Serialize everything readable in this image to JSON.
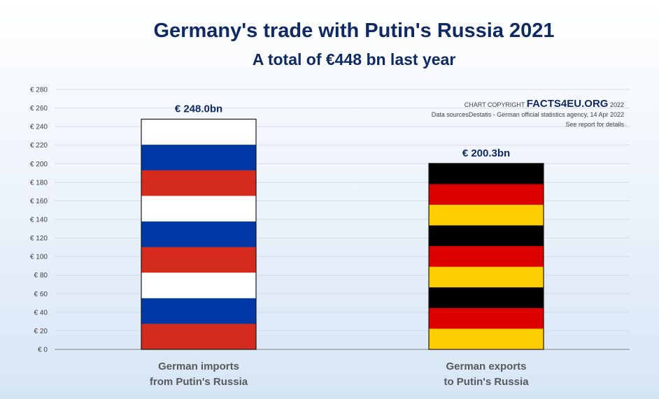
{
  "title": "Germany's trade with Putin's Russia 2021",
  "subtitle": "A total of €448 bn last year",
  "copyright": {
    "prefix": "CHART COPYRIGHT",
    "brand": "FACTS4EU.ORG",
    "year": "2022",
    "sources": "Data sourcesDestatis - German official statistics agency, 14 Apr 2022",
    "note": "See report for details"
  },
  "colors": {
    "russia": [
      "#ffffff",
      "#0039a6",
      "#d52b1e"
    ],
    "germany": [
      "#000000",
      "#dd0000",
      "#ffce00"
    ],
    "axis_text": "#404040",
    "title": "#0f2a63"
  },
  "chart_data": {
    "type": "bar",
    "categories": [
      "German imports from Putin's Russia",
      "German exports to Putin's Russia"
    ],
    "category_lines": [
      [
        "German imports",
        "from Putin's Russia"
      ],
      [
        "German exports",
        "to Putin's Russia"
      ]
    ],
    "values": [
      248.0,
      200.3
    ],
    "data_labels": [
      "€ 248.0bn",
      "€ 200.3bn"
    ],
    "ylim": [
      0,
      280
    ],
    "ytick_step": 20,
    "ytick_prefix": "€ ",
    "grid": true,
    "fill_patterns": [
      "russia-flag-stripes",
      "germany-flag-stripes"
    ]
  }
}
